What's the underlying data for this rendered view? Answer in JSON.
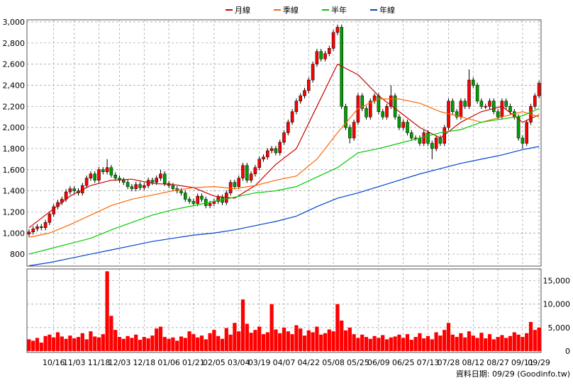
{
  "chart_data": {
    "type": "candlestick",
    "legend": [
      {
        "name": "月線",
        "color": "#cc0000"
      },
      {
        "name": "季線",
        "color": "#ff6600"
      },
      {
        "name": "半年",
        "color": "#00cc00"
      },
      {
        "name": "年線",
        "color": "#0044cc"
      }
    ],
    "up_color": "#ff0000",
    "down_color": "#00a000",
    "volume_color": "#ff0000",
    "grid": true,
    "footer": "資料日期: 09/29  (Goodinfo.tw)",
    "xlim": [
      0,
      124
    ],
    "xticks": [
      {
        "value": 6,
        "label": "10/16"
      },
      {
        "value": 11,
        "label": "11/03"
      },
      {
        "value": 17,
        "label": "11/18"
      },
      {
        "value": 22,
        "label": "12/03"
      },
      {
        "value": 28,
        "label": "12/18"
      },
      {
        "value": 34,
        "label": "01/06"
      },
      {
        "value": 40,
        "label": "01/21"
      },
      {
        "value": 45,
        "label": "02/05"
      },
      {
        "value": 51,
        "label": "03/04"
      },
      {
        "value": 56,
        "label": "03/19"
      },
      {
        "value": 62,
        "label": "04/07"
      },
      {
        "value": 68,
        "label": "04/22"
      },
      {
        "value": 74,
        "label": "05/08"
      },
      {
        "value": 80,
        "label": "05/25"
      },
      {
        "value": 85,
        "label": "06/09"
      },
      {
        "value": 91,
        "label": "06/25"
      },
      {
        "value": 97,
        "label": "07/13"
      },
      {
        "value": 102,
        "label": "07/28"
      },
      {
        "value": 108,
        "label": "08/12"
      },
      {
        "value": 114,
        "label": "08/27"
      },
      {
        "value": 120,
        "label": "09/11"
      },
      {
        "value": 124,
        "label": "09/29"
      }
    ],
    "ylim": [
      700,
      3000
    ],
    "yticks": [
      800,
      1000,
      1200,
      1400,
      1600,
      1800,
      2000,
      2200,
      2400,
      2600,
      2800,
      3000
    ],
    "ytick_labels": [
      "800",
      "1,000",
      "1,200",
      "1,400",
      "1,600",
      "1,800",
      "2,000",
      "2,200",
      "2,400",
      "2,600",
      "2,800",
      "3,000"
    ],
    "y2lim": [
      0,
      17500
    ],
    "y2ticks": [
      0,
      {
        "value": 5000,
        "label": "5,000"
      },
      {
        "value": 10000,
        "label": "10,000"
      },
      {
        "value": 15000,
        "label": "15,000"
      }
    ],
    "ohlc": [
      [
        990,
        1035,
        965,
        1010
      ],
      [
        1010,
        1065,
        985,
        1040
      ],
      [
        1040,
        1085,
        1015,
        1060
      ],
      [
        1060,
        1085,
        1025,
        1050
      ],
      [
        1050,
        1125,
        1025,
        1100
      ],
      [
        1100,
        1205,
        1075,
        1180
      ],
      [
        1180,
        1275,
        1155,
        1250
      ],
      [
        1250,
        1315,
        1225,
        1290
      ],
      [
        1290,
        1345,
        1265,
        1320
      ],
      [
        1320,
        1415,
        1295,
        1390
      ],
      [
        1390,
        1445,
        1365,
        1420
      ],
      [
        1420,
        1445,
        1375,
        1400
      ],
      [
        1400,
        1425,
        1355,
        1380
      ],
      [
        1380,
        1475,
        1355,
        1450
      ],
      [
        1450,
        1545,
        1425,
        1520
      ],
      [
        1520,
        1585,
        1495,
        1560
      ],
      [
        1560,
        1585,
        1475,
        1500
      ],
      [
        1500,
        1625,
        1475,
        1600
      ],
      [
        1600,
        1625,
        1555,
        1580
      ],
      [
        1580,
        1700,
        1555,
        1620
      ],
      [
        1620,
        1645,
        1525,
        1550
      ],
      [
        1550,
        1575,
        1495,
        1520
      ],
      [
        1520,
        1545,
        1475,
        1500
      ],
      [
        1500,
        1525,
        1455,
        1480
      ],
      [
        1480,
        1505,
        1415,
        1440
      ],
      [
        1440,
        1465,
        1395,
        1420
      ],
      [
        1420,
        1485,
        1395,
        1460
      ],
      [
        1460,
        1485,
        1405,
        1430
      ],
      [
        1430,
        1475,
        1405,
        1450
      ],
      [
        1450,
        1525,
        1425,
        1500
      ],
      [
        1500,
        1525,
        1455,
        1480
      ],
      [
        1480,
        1545,
        1455,
        1520
      ],
      [
        1520,
        1600,
        1495,
        1560
      ],
      [
        1560,
        1585,
        1445,
        1470
      ],
      [
        1470,
        1495,
        1425,
        1450
      ],
      [
        1450,
        1475,
        1395,
        1420
      ],
      [
        1420,
        1445,
        1375,
        1400
      ],
      [
        1400,
        1425,
        1355,
        1380
      ],
      [
        1380,
        1405,
        1295,
        1320
      ],
      [
        1320,
        1345,
        1275,
        1300
      ],
      [
        1300,
        1325,
        1255,
        1280
      ],
      [
        1280,
        1375,
        1255,
        1350
      ],
      [
        1350,
        1375,
        1295,
        1320
      ],
      [
        1320,
        1345,
        1235,
        1260
      ],
      [
        1260,
        1305,
        1235,
        1280
      ],
      [
        1280,
        1325,
        1255,
        1300
      ],
      [
        1300,
        1365,
        1275,
        1340
      ],
      [
        1340,
        1365,
        1265,
        1290
      ],
      [
        1290,
        1405,
        1265,
        1380
      ],
      [
        1380,
        1505,
        1355,
        1480
      ],
      [
        1480,
        1505,
        1415,
        1440
      ],
      [
        1440,
        1545,
        1415,
        1520
      ],
      [
        1520,
        1665,
        1495,
        1640
      ],
      [
        1640,
        1665,
        1475,
        1500
      ],
      [
        1500,
        1585,
        1475,
        1560
      ],
      [
        1560,
        1645,
        1535,
        1620
      ],
      [
        1620,
        1725,
        1595,
        1700
      ],
      [
        1700,
        1745,
        1675,
        1720
      ],
      [
        1720,
        1805,
        1695,
        1780
      ],
      [
        1780,
        1825,
        1755,
        1800
      ],
      [
        1800,
        1825,
        1735,
        1760
      ],
      [
        1760,
        1885,
        1735,
        1860
      ],
      [
        1860,
        1975,
        1835,
        1950
      ],
      [
        1950,
        2075,
        1925,
        2050
      ],
      [
        2050,
        2175,
        2025,
        2150
      ],
      [
        2150,
        2275,
        2125,
        2250
      ],
      [
        2250,
        2325,
        2225,
        2300
      ],
      [
        2300,
        2375,
        2275,
        2350
      ],
      [
        2350,
        2475,
        2325,
        2450
      ],
      [
        2450,
        2625,
        2425,
        2600
      ],
      [
        2600,
        2745,
        2575,
        2720
      ],
      [
        2720,
        2745,
        2625,
        2650
      ],
      [
        2650,
        2725,
        2625,
        2700
      ],
      [
        2700,
        2775,
        2675,
        2750
      ],
      [
        2750,
        2925,
        2725,
        2900
      ],
      [
        2900,
        2975,
        2875,
        2950
      ],
      [
        2950,
        2975,
        2175,
        2200
      ],
      [
        2200,
        2225,
        1975,
        2000
      ],
      [
        2000,
        2025,
        1850,
        1900
      ],
      [
        1900,
        2075,
        1875,
        2050
      ],
      [
        2050,
        2325,
        2025,
        2300
      ],
      [
        2300,
        2325,
        2155,
        2180
      ],
      [
        2180,
        2205,
        2075,
        2100
      ],
      [
        2100,
        2275,
        2075,
        2250
      ],
      [
        2250,
        2325,
        2225,
        2300
      ],
      [
        2300,
        2325,
        2125,
        2150
      ],
      [
        2150,
        2175,
        2075,
        2100
      ],
      [
        2100,
        2225,
        2075,
        2200
      ],
      [
        2200,
        2400,
        2175,
        2300
      ],
      [
        2300,
        2325,
        2075,
        2100
      ],
      [
        2100,
        2125,
        1975,
        2000
      ],
      [
        2000,
        2075,
        1975,
        2050
      ],
      [
        2050,
        2075,
        1925,
        1950
      ],
      [
        1950,
        1975,
        1875,
        1900
      ],
      [
        1900,
        1925,
        1875,
        1900
      ],
      [
        1900,
        1925,
        1825,
        1850
      ],
      [
        1850,
        1975,
        1825,
        1950
      ],
      [
        1950,
        1975,
        1825,
        1850
      ],
      [
        1850,
        1875,
        1700,
        1800
      ],
      [
        1800,
        1925,
        1775,
        1900
      ],
      [
        1900,
        1925,
        1825,
        1850
      ],
      [
        1850,
        2025,
        1825,
        2000
      ],
      [
        2000,
        2275,
        1975,
        2250
      ],
      [
        2250,
        2275,
        2125,
        2150
      ],
      [
        2150,
        2175,
        2075,
        2100
      ],
      [
        2100,
        2275,
        2075,
        2250
      ],
      [
        2250,
        2275,
        2175,
        2200
      ],
      [
        2200,
        2550,
        2175,
        2450
      ],
      [
        2450,
        2475,
        2375,
        2400
      ],
      [
        2400,
        2425,
        2225,
        2250
      ],
      [
        2250,
        2275,
        2175,
        2200
      ],
      [
        2200,
        2225,
        2175,
        2200
      ],
      [
        2200,
        2275,
        2175,
        2250
      ],
      [
        2250,
        2275,
        2125,
        2150
      ],
      [
        2150,
        2175,
        2075,
        2100
      ],
      [
        2100,
        2275,
        2075,
        2250
      ],
      [
        2250,
        2275,
        2175,
        2200
      ],
      [
        2200,
        2225,
        2125,
        2150
      ],
      [
        2150,
        2175,
        2075,
        2100
      ],
      [
        2100,
        2125,
        1875,
        1900
      ],
      [
        1900,
        1925,
        1800,
        1850
      ],
      [
        1850,
        2075,
        1825,
        2050
      ],
      [
        2050,
        2225,
        2025,
        2200
      ],
      [
        2200,
        2325,
        2175,
        2300
      ],
      [
        2300,
        2445,
        2275,
        2420
      ]
    ],
    "volume": [
      2500,
      2200,
      2800,
      1800,
      3200,
      3500,
      2900,
      4000,
      3100,
      2600,
      3300,
      2700,
      3000,
      3800,
      2500,
      4200,
      3100,
      2900,
      3600,
      17000,
      7500,
      4500,
      3000,
      2600,
      3200,
      2800,
      3500,
      2400,
      3000,
      2700,
      3300,
      4800,
      5200,
      3000,
      2600,
      2900,
      2200,
      3100,
      2800,
      4200,
      3600,
      2900,
      3300,
      2500,
      3800,
      4500,
      3200,
      2600,
      4900,
      3500,
      6000,
      4200,
      11000,
      5800,
      3900,
      4500,
      5200,
      3600,
      4000,
      10000,
      4600,
      3800,
      5000,
      4200,
      3600,
      5500,
      4800,
      3300,
      4400,
      4000,
      5200,
      3500,
      3800,
      4600,
      4200,
      10000,
      6500,
      4400,
      5000,
      3600,
      2800,
      3500,
      3000,
      2600,
      3200,
      2800,
      3400,
      2500,
      2900,
      3100,
      3500,
      2800,
      3600,
      2400,
      3000,
      3800,
      2700,
      3200,
      2500,
      4000,
      3300,
      4500,
      6000,
      3500,
      3000,
      3800,
      2900,
      4200,
      3300,
      2800,
      3900,
      2700,
      3600,
      2500,
      3000,
      3400,
      2800,
      3200,
      4000,
      3500,
      3000,
      3800,
      6200,
      4500,
      5000
    ],
    "lines_x": [
      0,
      5,
      10,
      15,
      20,
      25,
      30,
      35,
      40,
      45,
      50,
      55,
      60,
      65,
      70,
      75,
      80,
      85,
      90,
      95,
      100,
      105,
      110,
      115,
      120,
      124
    ],
    "lines": [
      {
        "values": [
          1050,
          1200,
          1350,
          1450,
          1500,
          1510,
          1470,
          1460,
          1430,
          1350,
          1330,
          1450,
          1650,
          1800,
          2200,
          2600,
          2500,
          2300,
          2150,
          2000,
          1900,
          2050,
          2150,
          2200,
          2050,
          2120
        ]
      },
      {
        "values": [
          960,
          1000,
          1080,
          1170,
          1260,
          1320,
          1360,
          1400,
          1430,
          1440,
          1420,
          1450,
          1500,
          1540,
          1700,
          1950,
          2180,
          2270,
          2270,
          2230,
          2150,
          2100,
          2050,
          2100,
          2150,
          2100
        ]
      },
      {
        "values": [
          800,
          850,
          900,
          950,
          1030,
          1100,
          1170,
          1220,
          1260,
          1300,
          1340,
          1380,
          1400,
          1440,
          1530,
          1620,
          1760,
          1800,
          1850,
          1900,
          1950,
          1980,
          2050,
          2080,
          2110,
          2180
        ]
      },
      {
        "values": [
          690,
          720,
          760,
          800,
          840,
          880,
          920,
          950,
          980,
          1000,
          1030,
          1070,
          1110,
          1160,
          1250,
          1330,
          1380,
          1440,
          1500,
          1560,
          1610,
          1660,
          1700,
          1740,
          1790,
          1820
        ]
      }
    ]
  }
}
